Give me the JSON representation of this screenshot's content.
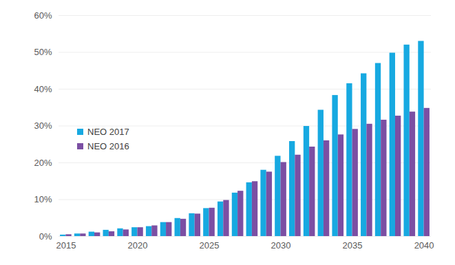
{
  "chart_data": {
    "type": "bar",
    "categories": [
      "2015",
      null,
      null,
      null,
      null,
      "2020",
      null,
      null,
      null,
      null,
      "2025",
      null,
      null,
      null,
      null,
      "2030",
      null,
      null,
      null,
      null,
      "2035",
      null,
      null,
      null,
      null,
      "2040"
    ],
    "series": [
      {
        "name": "NEO 2017",
        "color": "#17a9e1",
        "values": [
          0.4,
          0.7,
          1.2,
          1.7,
          2.1,
          2.4,
          2.7,
          3.8,
          4.9,
          6.2,
          7.6,
          9.4,
          11.8,
          14.6,
          18.0,
          21.8,
          25.8,
          29.9,
          34.3,
          38.3,
          41.5,
          44.2,
          47.0,
          49.8,
          52.0,
          53.0
        ]
      },
      {
        "name": "NEO 2016",
        "color": "#7b4fa3",
        "values": [
          0.5,
          0.7,
          1.0,
          1.3,
          1.8,
          2.4,
          2.9,
          3.8,
          4.7,
          6.1,
          7.7,
          9.8,
          12.3,
          14.9,
          17.5,
          20.1,
          22.1,
          24.3,
          26.0,
          27.6,
          29.1,
          30.5,
          31.6,
          32.7,
          33.8,
          34.8
        ]
      }
    ],
    "ylim": [
      0,
      60
    ],
    "yticks": [
      {
        "value": 0,
        "label": "0%"
      },
      {
        "value": 10,
        "label": "10%"
      },
      {
        "value": 20,
        "label": "20%"
      },
      {
        "value": 30,
        "label": "30%"
      },
      {
        "value": 40,
        "label": "40%"
      },
      {
        "value": 50,
        "label": "50%"
      },
      {
        "value": 60,
        "label": "60%"
      }
    ],
    "grid": true,
    "legend": "left"
  }
}
